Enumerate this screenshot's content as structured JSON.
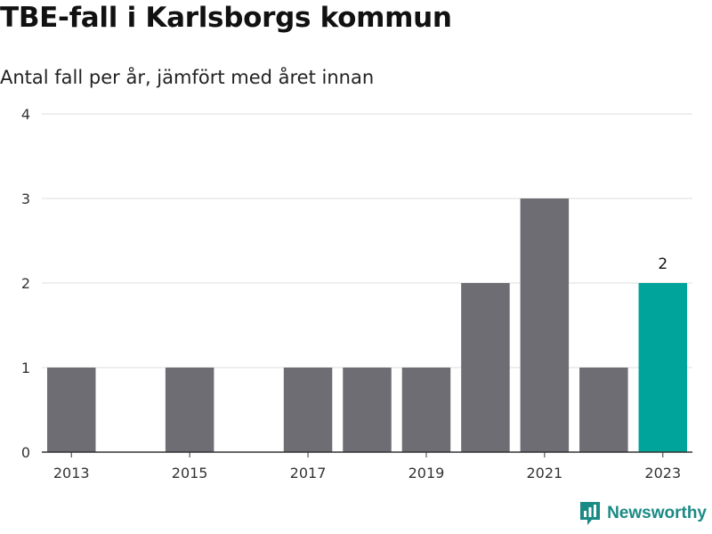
{
  "header": {
    "title": "TBE-fall i Karlsborgs kommun",
    "subtitle": "Antal fall per år, jämfört med året innan"
  },
  "brand": {
    "name": "Newsworthy"
  },
  "colors": {
    "bar": "#6d6d73",
    "highlight": "#00a49a",
    "grid": "#dddddd",
    "axis": "#333333",
    "brand": "#1a8a84"
  },
  "chart_data": {
    "type": "bar",
    "x": [
      2013,
      2014,
      2015,
      2016,
      2017,
      2018,
      2019,
      2020,
      2021,
      2022,
      2023
    ],
    "values": [
      1,
      0,
      1,
      0,
      1,
      1,
      1,
      2,
      3,
      1,
      2
    ],
    "xticks": [
      "2013",
      "2015",
      "2017",
      "2019",
      "2021",
      "2023"
    ],
    "yticks": [
      "0",
      "1",
      "2",
      "3",
      "4"
    ],
    "ylim": [
      0,
      4
    ],
    "highlight_index": 10,
    "data_label": "2",
    "grid": true,
    "legend": "none"
  }
}
